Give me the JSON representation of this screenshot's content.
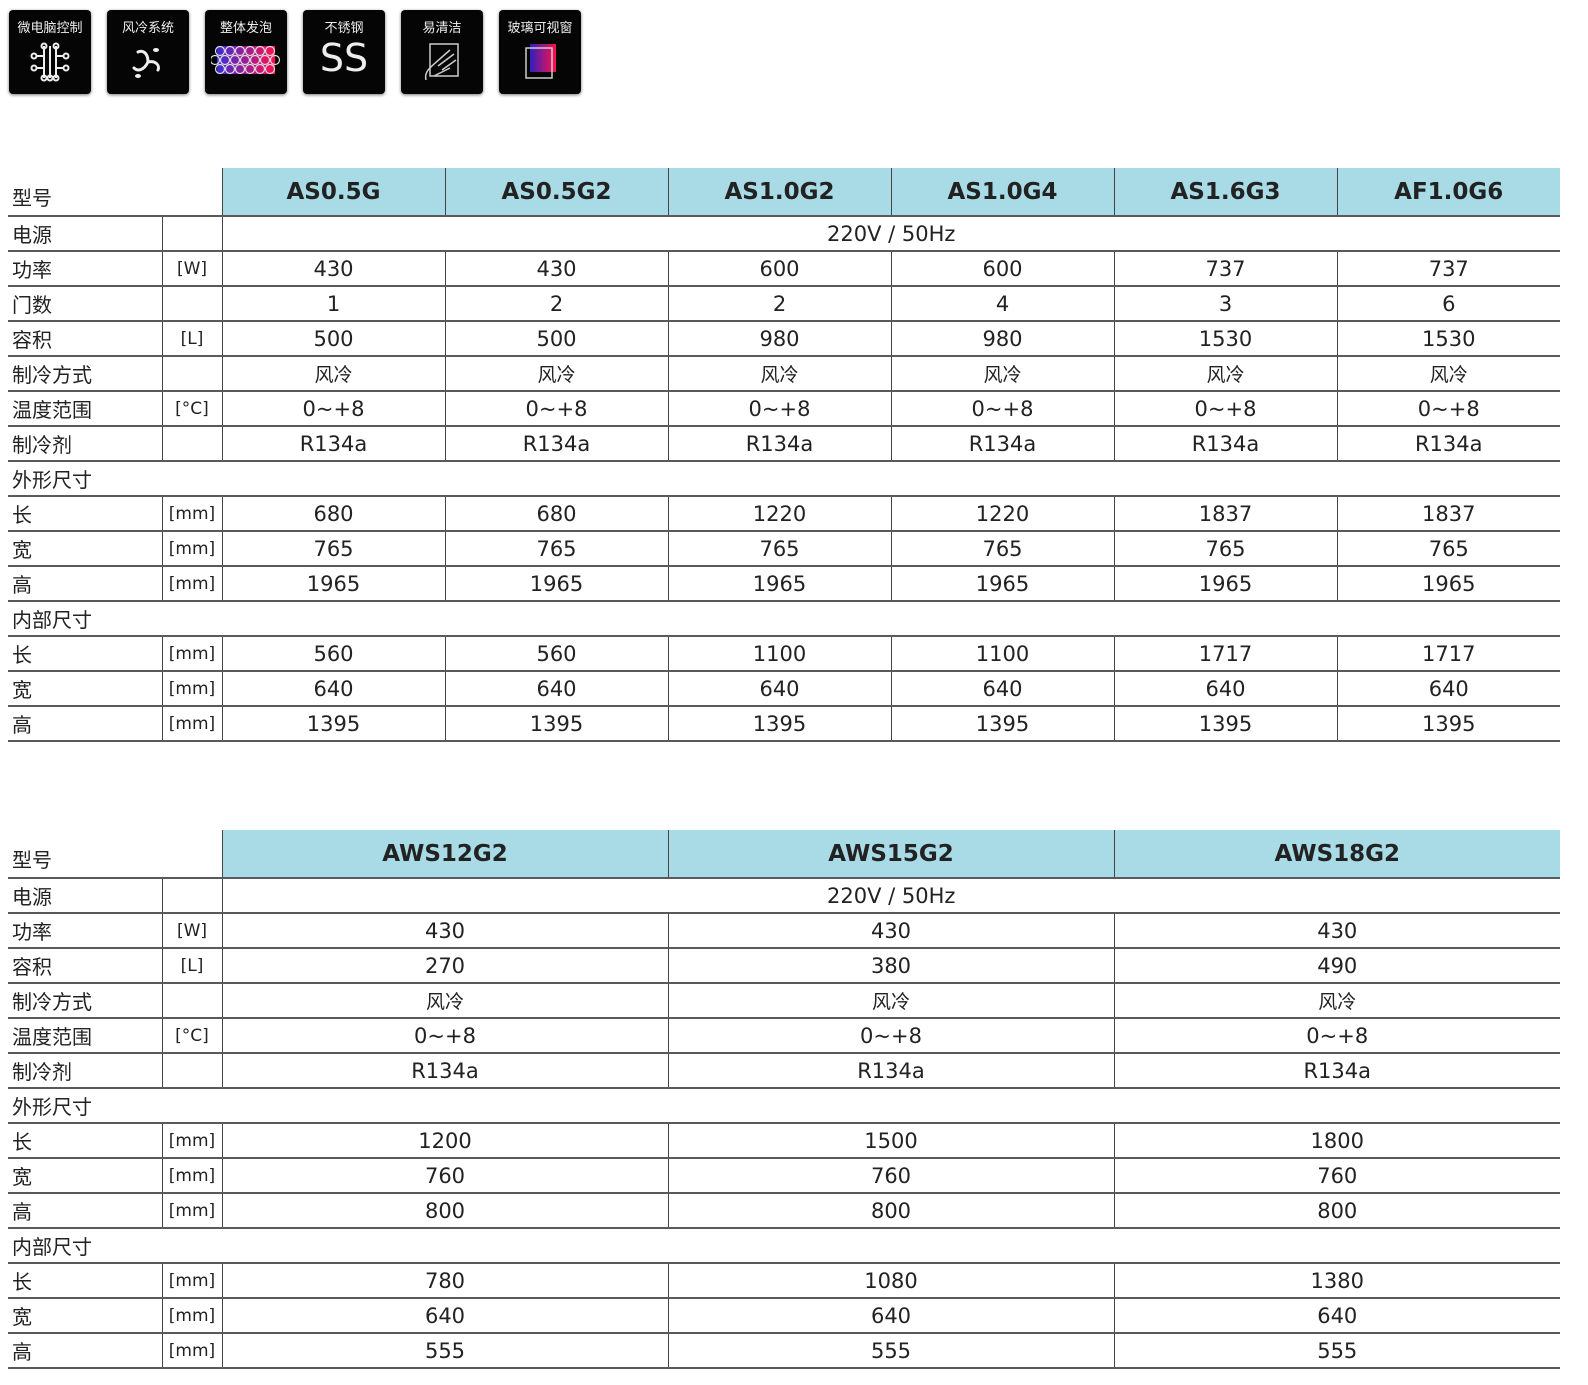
{
  "icons": [
    {
      "label": "微电脑控制",
      "icon": "circuit-icon"
    },
    {
      "label": "风冷系统",
      "icon": "fan-icon"
    },
    {
      "label": "整体发泡",
      "icon": "foam-bubbles-icon"
    },
    {
      "label": "不锈钢",
      "icon": "stainless-steel-icon",
      "glyph": "SS"
    },
    {
      "label": "易清洁",
      "icon": "hand-wipe-icon"
    },
    {
      "label": "玻璃可视窗",
      "icon": "glass-window-icon"
    }
  ],
  "colors": {
    "header_bg": "#a8dbe6",
    "icon_bg": "#050505"
  },
  "tables": [
    {
      "header_label": "型号",
      "models": [
        "AS0.5G",
        "AS0.5G2",
        "AS1.0G2",
        "AS1.0G4",
        "AS1.6G3",
        "AF1.0G6"
      ],
      "rows": [
        {
          "label": "电源",
          "unit": "",
          "span": "220V / 50Hz"
        },
        {
          "label": "功率",
          "unit": "[W]",
          "values": [
            "430",
            "430",
            "600",
            "600",
            "737",
            "737"
          ]
        },
        {
          "label": "门数",
          "unit": "",
          "values": [
            "1",
            "2",
            "2",
            "4",
            "3",
            "6"
          ]
        },
        {
          "label": "容积",
          "unit": "[L]",
          "values": [
            "500",
            "500",
            "980",
            "980",
            "1530",
            "1530"
          ]
        },
        {
          "label": "制冷方式",
          "unit": "",
          "values": [
            "风冷",
            "风冷",
            "风冷",
            "风冷",
            "风冷",
            "风冷"
          ]
        },
        {
          "label": "温度范围",
          "unit": "[°C]",
          "values": [
            "0~+8",
            "0~+8",
            "0~+8",
            "0~+8",
            "0~+8",
            "0~+8"
          ]
        },
        {
          "label": "制冷剂",
          "unit": "",
          "values": [
            "R134a",
            "R134a",
            "R134a",
            "R134a",
            "R134a",
            "R134a"
          ]
        },
        {
          "section": "外形尺寸"
        },
        {
          "label": "长",
          "unit": "[mm]",
          "values": [
            "680",
            "680",
            "1220",
            "1220",
            "1837",
            "1837"
          ]
        },
        {
          "label": "宽",
          "unit": "[mm]",
          "values": [
            "765",
            "765",
            "765",
            "765",
            "765",
            "765"
          ]
        },
        {
          "label": "高",
          "unit": "[mm]",
          "values": [
            "1965",
            "1965",
            "1965",
            "1965",
            "1965",
            "1965"
          ]
        },
        {
          "section": "内部尺寸"
        },
        {
          "label": "长",
          "unit": "[mm]",
          "values": [
            "560",
            "560",
            "1100",
            "1100",
            "1717",
            "1717"
          ]
        },
        {
          "label": "宽",
          "unit": "[mm]",
          "values": [
            "640",
            "640",
            "640",
            "640",
            "640",
            "640"
          ]
        },
        {
          "label": "高",
          "unit": "[mm]",
          "values": [
            "1395",
            "1395",
            "1395",
            "1395",
            "1395",
            "1395"
          ]
        }
      ]
    },
    {
      "header_label": "型号",
      "models": [
        "AWS12G2",
        "AWS15G2",
        "AWS18G2"
      ],
      "rows": [
        {
          "label": "电源",
          "unit": "",
          "span": "220V / 50Hz"
        },
        {
          "label": "功率",
          "unit": "[W]",
          "values": [
            "430",
            "430",
            "430"
          ]
        },
        {
          "label": "容积",
          "unit": "[L]",
          "values": [
            "270",
            "380",
            "490"
          ]
        },
        {
          "label": "制冷方式",
          "unit": "",
          "values": [
            "风冷",
            "风冷",
            "风冷"
          ]
        },
        {
          "label": "温度范围",
          "unit": "[°C]",
          "values": [
            "0~+8",
            "0~+8",
            "0~+8"
          ]
        },
        {
          "label": "制冷剂",
          "unit": "",
          "values": [
            "R134a",
            "R134a",
            "R134a"
          ]
        },
        {
          "section": "外形尺寸"
        },
        {
          "label": "长",
          "unit": "[mm]",
          "values": [
            "1200",
            "1500",
            "1800"
          ]
        },
        {
          "label": "宽",
          "unit": "[mm]",
          "values": [
            "760",
            "760",
            "760"
          ]
        },
        {
          "label": "高",
          "unit": "[mm]",
          "values": [
            "800",
            "800",
            "800"
          ]
        },
        {
          "section": "内部尺寸"
        },
        {
          "label": "长",
          "unit": "[mm]",
          "values": [
            "780",
            "1080",
            "1380"
          ]
        },
        {
          "label": "宽",
          "unit": "[mm]",
          "values": [
            "640",
            "640",
            "640"
          ]
        },
        {
          "label": "高",
          "unit": "[mm]",
          "values": [
            "555",
            "555",
            "555"
          ]
        }
      ]
    }
  ]
}
